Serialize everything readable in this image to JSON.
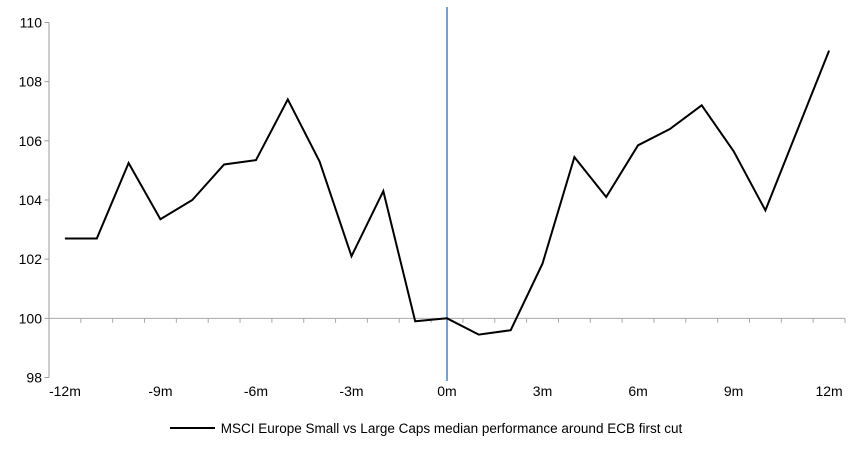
{
  "chart_data": {
    "type": "line",
    "title": "",
    "xlabel": "",
    "ylabel": "",
    "series_name": "MSCI Europe Small vs Large Caps median performance around ECB first cut",
    "x_months": [
      -12,
      -11,
      -10,
      -9,
      -8,
      -7,
      -6,
      -5,
      -4,
      -3,
      -2,
      -1,
      0,
      1,
      2,
      3,
      4,
      5,
      6,
      7,
      8,
      9,
      10,
      11,
      12
    ],
    "values": [
      102.7,
      102.7,
      105.25,
      103.35,
      104.0,
      105.2,
      105.35,
      107.4,
      105.3,
      102.1,
      104.3,
      99.9,
      100.0,
      99.45,
      99.6,
      101.85,
      105.45,
      104.1,
      105.85,
      106.4,
      107.2,
      105.65,
      103.65,
      106.35,
      109.05
    ],
    "xtick_months": [
      -12,
      -9,
      -6,
      -3,
      0,
      3,
      6,
      9,
      12
    ],
    "xticklabels": [
      "-12m",
      "-9m",
      "-6m",
      "-3m",
      "0m",
      "3m",
      "6m",
      "9m",
      "12m"
    ],
    "yticks": [
      110,
      108,
      106,
      104,
      102,
      100,
      98
    ],
    "ylim": [
      98,
      110.5
    ],
    "baseline_value": 100,
    "event_line_month": 0,
    "grid": "single horizontal baseline at 100 with monthly ticks",
    "legend_position": "bottom-center",
    "colors": {
      "series_line": "#000000",
      "event_line": "#75a3ce",
      "y_axis": "#9b9b9b",
      "baseline": "#a9a9a9",
      "text": "#000000",
      "background": "#ffffff"
    }
  }
}
